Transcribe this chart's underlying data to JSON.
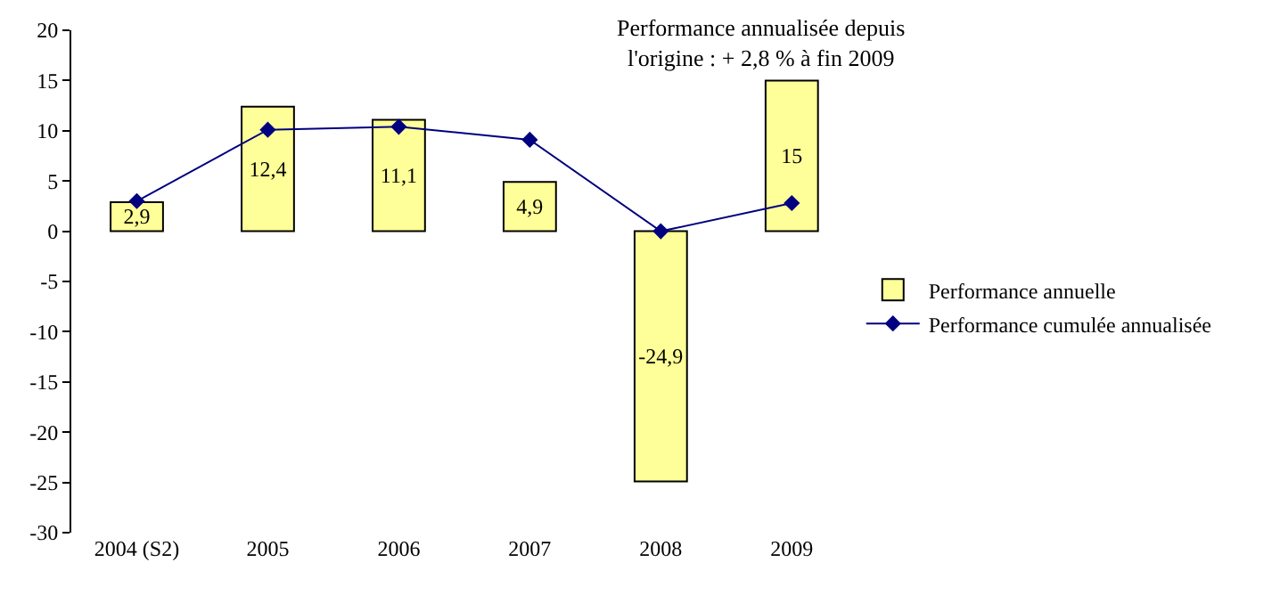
{
  "chart_data": {
    "type": "bar",
    "title": "Performance annualisée depuis\nl'origine : + 2,8 % à fin 2009",
    "categories": [
      "2004 (S2)",
      "2005",
      "2006",
      "2007",
      "2008",
      "2009"
    ],
    "series": [
      {
        "name": "Performance annuelle",
        "color": "#ffff99",
        "values": [
          2.9,
          12.4,
          11.1,
          4.9,
          -24.9,
          15
        ],
        "value_labels": [
          "2,9",
          "12,4",
          "11,1",
          "4,9",
          "-24,9",
          "15"
        ]
      },
      {
        "name": "Performance cumulée annualisée",
        "type": "line",
        "color": "#000080",
        "marker": "diamond",
        "line_style": "solid",
        "values": [
          3.0,
          10.1,
          10.4,
          9.1,
          0.0,
          2.8
        ]
      }
    ],
    "ylim": [
      -30,
      20
    ],
    "yticks": [
      -30,
      -25,
      -20,
      -15,
      -10,
      -5,
      0,
      5,
      10,
      15,
      20
    ],
    "legend": "right"
  }
}
